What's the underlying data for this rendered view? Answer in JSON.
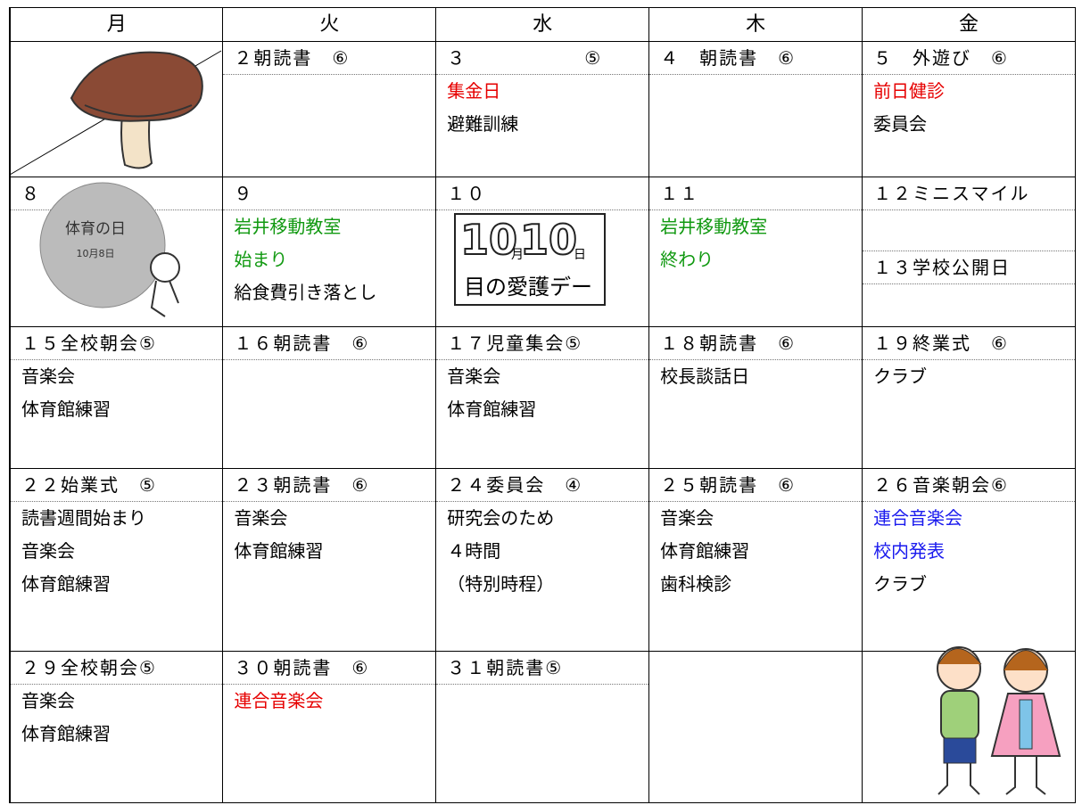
{
  "weekdays": [
    "月",
    "火",
    "水",
    "木",
    "金"
  ],
  "weeks": [
    {
      "cells": [
        null,
        {
          "date": "２朝読書　⑥"
        },
        {
          "date": "３　　　　　　⑤",
          "lines": [
            {
              "text": "集金日",
              "color": "#e60000"
            },
            "避難訓練"
          ]
        },
        {
          "date": "４　朝読書　⑥"
        },
        {
          "date": "５　外遊び　⑥",
          "lines": [
            {
              "text": "前日健診",
              "color": "#e60000"
            },
            "委員会"
          ]
        }
      ]
    },
    {
      "cells": [
        {
          "date": "８"
        },
        {
          "date": "９",
          "lines": [
            {
              "text": "岩井移動教室",
              "color": "#119911"
            },
            {
              "text": "始まり",
              "color": "#119911"
            },
            "給食費引き落とし"
          ]
        },
        {
          "date": "１０"
        },
        {
          "date": "１１",
          "lines": [
            {
              "text": "岩井移動教室",
              "color": "#119911"
            },
            {
              "text": "終わり",
              "color": "#119911"
            }
          ]
        },
        {
          "date": "１２ミニスマイル",
          "sub_date": "１３学校公開日"
        }
      ]
    },
    {
      "cells": [
        {
          "date": "１５全校朝会⑤",
          "lines": [
            "音楽会",
            "体育館練習"
          ]
        },
        {
          "date": "１６朝読書　⑥"
        },
        {
          "date": "１７児童集会⑤",
          "lines": [
            "音楽会",
            "体育館練習"
          ]
        },
        {
          "date": "１８朝読書　⑥",
          "lines": [
            "校長談話日"
          ]
        },
        {
          "date": "１９終業式　⑥",
          "lines": [
            "クラブ"
          ]
        }
      ]
    },
    {
      "cells": [
        {
          "date": "２２始業式　⑤",
          "lines": [
            "読書週間始まり",
            "音楽会",
            "体育館練習"
          ]
        },
        {
          "date": "２３朝読書　⑥",
          "lines": [
            "音楽会",
            "体育館練習"
          ]
        },
        {
          "date": "２４委員会　④",
          "lines": [
            "研究会のため",
            "４時間",
            "（特別時程）"
          ]
        },
        {
          "date": "２５朝読書　⑥",
          "lines": [
            "音楽会",
            "体育館練習",
            "歯科検診"
          ]
        },
        {
          "date": "２６音楽朝会⑥",
          "lines": [
            {
              "text": "連合音楽会",
              "color": "#1a1aee"
            },
            {
              "text": "校内発表",
              "color": "#1a1aee"
            },
            "クラブ"
          ]
        }
      ]
    },
    {
      "cells": [
        {
          "date": "２９全校朝会⑤",
          "lines": [
            "音楽会",
            "体育館練習"
          ]
        },
        {
          "date": "３０朝読書　⑥",
          "lines": [
            {
              "text": "連合音楽会",
              "color": "#e60000"
            }
          ]
        },
        {
          "date": "３１朝読書⑤"
        },
        null,
        null
      ]
    }
  ],
  "illustrations": {
    "sports_day": {
      "title": "体育の日",
      "date": "10月8日"
    },
    "eye_day": {
      "big": "10",
      "month": "月",
      "big2": "10",
      "day": "日",
      "caption": "目の愛護デー"
    }
  }
}
